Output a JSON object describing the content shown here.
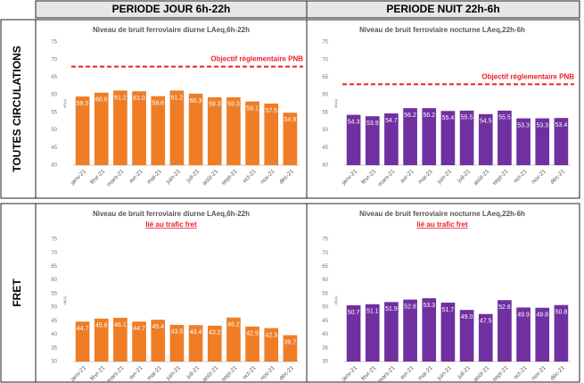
{
  "columns": [
    "PERIODE JOUR 6h-22h",
    "PERIODE NUIT 22h-6h"
  ],
  "rows": [
    "TOUTES CIRCULATIONS",
    "FRET"
  ],
  "chart_data": [
    {
      "type": "bar",
      "title": "Niveau de bruit ferroviaire diurne LAeq,6h-22h",
      "y_label": "dB(A)",
      "categories": [
        "janv-21",
        "févr-21",
        "mars-21",
        "avr-21",
        "mai-21",
        "juin-21",
        "juil-21",
        "août-21",
        "sept-21",
        "oct-21",
        "nov-21",
        "déc-21"
      ],
      "values": [
        59.5,
        60.6,
        61.2,
        61.0,
        59.6,
        61.2,
        60.3,
        59.3,
        59.3,
        58.1,
        57.5,
        54.9
      ],
      "value_labels": [
        "59.5",
        "60.6",
        "61.2",
        "61.0",
        "59.6",
        "61.2",
        "60.3",
        "59.3",
        "59.3",
        "58.1",
        "57.5",
        "54.9"
      ],
      "color": "#ee7d26",
      "ylim": [
        40,
        75
      ],
      "yticks": [
        40,
        45,
        50,
        55,
        60,
        65,
        70,
        75
      ],
      "threshold": {
        "value": 68,
        "label": "Objectif réglementaire PNB",
        "color": "#e8202a"
      }
    },
    {
      "type": "bar",
      "title": "Niveau de bruit ferroviaire nocturne LAeq,22h-6h",
      "y_label": "dB(A)",
      "categories": [
        "janv-21",
        "févr-21",
        "mars-21",
        "avr-21",
        "mai-21",
        "juin-21",
        "juil-21",
        "août-21",
        "sept-21",
        "oct-21",
        "nov-21",
        "déc-21"
      ],
      "values": [
        54.3,
        53.9,
        54.7,
        56.2,
        56.2,
        55.4,
        55.5,
        54.5,
        55.5,
        53.3,
        53.3,
        53.4
      ],
      "color": "#7030a0",
      "ylim": [
        40,
        75
      ],
      "yticks": [
        40,
        45,
        50,
        55,
        60,
        65,
        70,
        75
      ],
      "threshold": {
        "value": 63,
        "label": "Objectif réglementaire PNB",
        "color": "#e8202a"
      }
    },
    {
      "type": "bar",
      "title": "Niveau de bruit ferroviaire diurne LAeq,6h-22h",
      "subtitle": "lié au trafic fret",
      "y_label": "dB(A)",
      "categories": [
        "janv-21",
        "févr-21",
        "mars-21",
        "avr-21",
        "mai-21",
        "juin-21",
        "juil-21",
        "août-21",
        "sept-21",
        "oct-21",
        "nov-21",
        "déc-21"
      ],
      "values": [
        44.7,
        45.8,
        46.1,
        44.7,
        45.4,
        43.5,
        43.4,
        43.2,
        46.2,
        42.9,
        42.3,
        39.7
      ],
      "color": "#ee7d26",
      "ylim": [
        30,
        75
      ],
      "yticks": [
        30,
        35,
        40,
        45,
        50,
        55,
        60,
        65,
        70,
        75
      ]
    },
    {
      "type": "bar",
      "title": "Niveau de bruit ferroviaire nocturne LAeq,22h-6h",
      "subtitle": "lié au trafic fret",
      "y_label": "dB(A)",
      "categories": [
        "janv-21",
        "févr-21",
        "mars-21",
        "avr-21",
        "mai-21",
        "juin-21",
        "juil-21",
        "août-21",
        "sept-21",
        "oct-21",
        "nov-21",
        "déc-21"
      ],
      "values": [
        50.7,
        51.1,
        51.9,
        52.8,
        53.3,
        51.7,
        49.0,
        47.5,
        52.6,
        49.9,
        49.8,
        50.8
      ],
      "value_labels": [
        "50.7",
        "51.1",
        "51.9",
        "52.8",
        "53.3",
        "51.7",
        "49.0",
        "47.5",
        "52.6",
        "49.9",
        "49.8",
        "50.8"
      ],
      "color": "#7030a0",
      "ylim": [
        30,
        75
      ],
      "yticks": [
        30,
        35,
        40,
        45,
        50,
        55,
        60,
        65,
        70,
        75
      ]
    }
  ]
}
